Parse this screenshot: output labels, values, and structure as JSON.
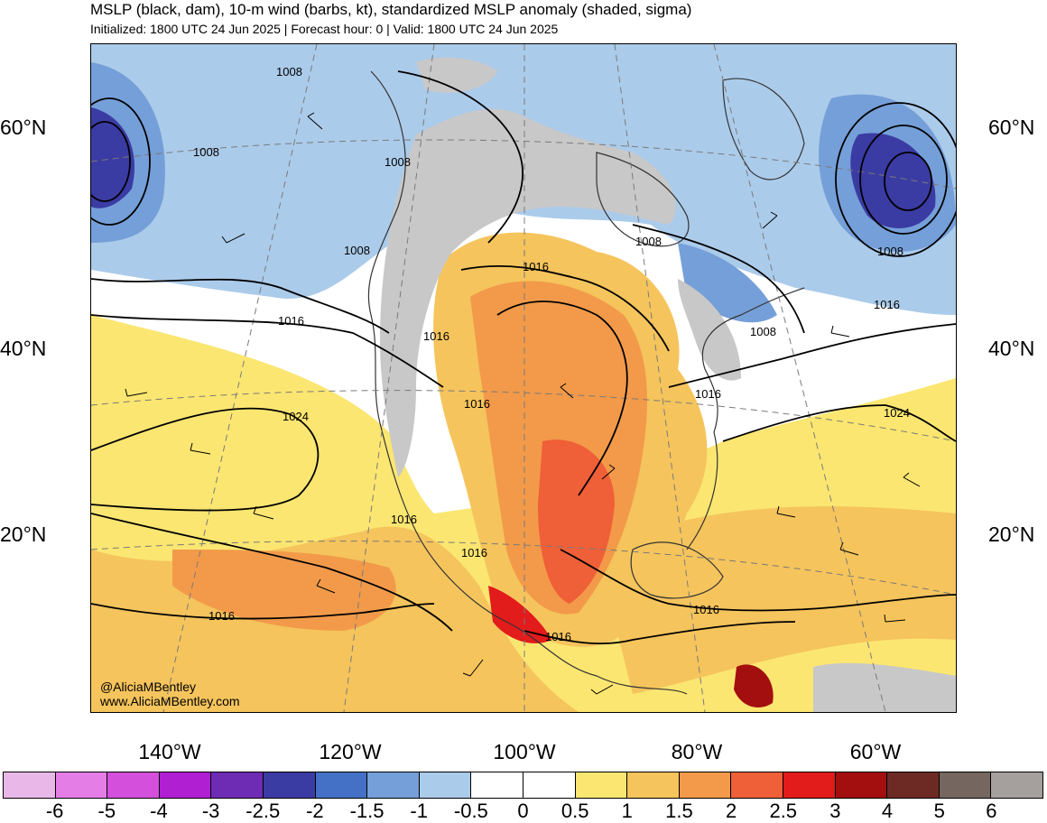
{
  "header": {
    "title": "MSLP (black, dam), 10-m wind (barbs, kt), standardized MSLP anomaly (shaded, sigma)",
    "subtitle": "Initialized: 1800 UTC 24 Jun 2025 | Forecast hour: 0 | Valid: 1800 UTC 24 Jun 2025"
  },
  "map": {
    "lat_labels": [
      "60°N",
      "40°N",
      "20°N"
    ],
    "lon_labels": [
      "140°W",
      "120°W",
      "100°W",
      "80°W",
      "60°W"
    ],
    "contour_labels": [
      {
        "text": "1008"
      },
      {
        "text": "1008"
      },
      {
        "text": "1008"
      },
      {
        "text": "1008"
      },
      {
        "text": "1008"
      },
      {
        "text": "1008"
      },
      {
        "text": "1008"
      },
      {
        "text": "1016"
      },
      {
        "text": "1016"
      },
      {
        "text": "1016"
      },
      {
        "text": "1016"
      },
      {
        "text": "1016"
      },
      {
        "text": "1016"
      },
      {
        "text": "1016"
      },
      {
        "text": "1016"
      },
      {
        "text": "1016"
      },
      {
        "text": "1016"
      },
      {
        "text": "1016"
      },
      {
        "text": "1024"
      },
      {
        "text": "1024"
      }
    ],
    "credits": [
      "@AliciaMBentley",
      "www.AliciaMBentley.com"
    ]
  },
  "colorbar": {
    "labels": [
      "-6",
      "-5",
      "-4",
      "-3",
      "-2.5",
      "-2",
      "-1.5",
      "-1",
      "-0.5",
      "0",
      "0.5",
      "1",
      "1.5",
      "2",
      "2.5",
      "3",
      "4",
      "5",
      "6"
    ],
    "colors": [
      "#eab8e8",
      "#e57de6",
      "#d44fdc",
      "#b01fd2",
      "#6e2bb4",
      "#3b3ba4",
      "#4471c6",
      "#759fd8",
      "#abcbea",
      "#ffffff",
      "#ffffff",
      "#fbe671",
      "#f5c45c",
      "#f29a4a",
      "#ef5f38",
      "#e21b1b",
      "#a30f0f",
      "#6d2a24",
      "#75665f",
      "#a59f9e"
    ]
  }
}
